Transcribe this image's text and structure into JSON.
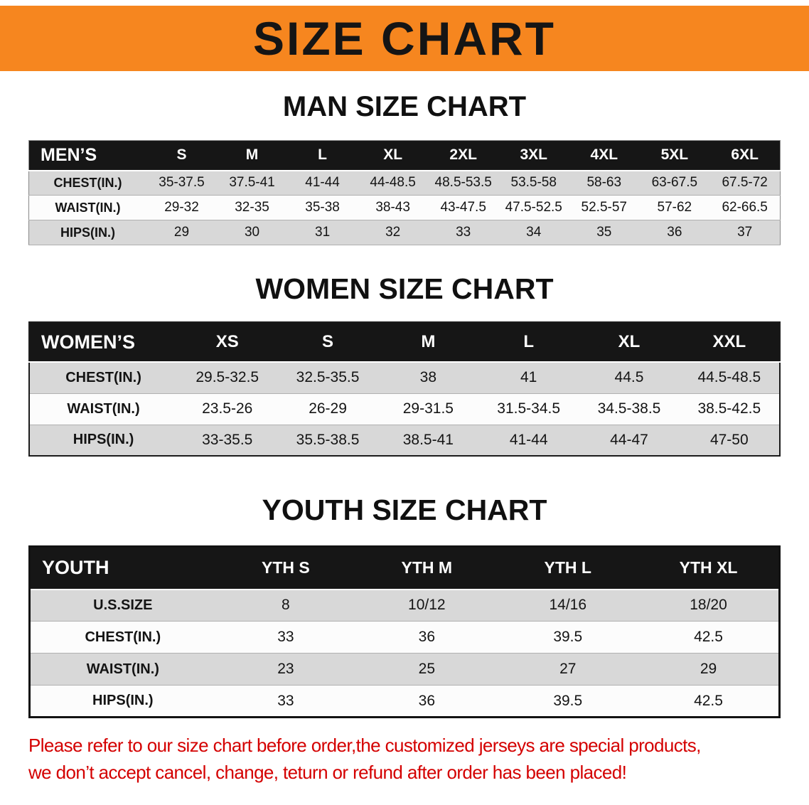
{
  "banner": {
    "title": "SIZE CHART"
  },
  "sections": [
    {
      "heading": "MAN SIZE CHART",
      "table": {
        "header": [
          "MEN’S",
          "S",
          "M",
          "L",
          "XL",
          "2XL",
          "3XL",
          "4XL",
          "5XL",
          "6XL"
        ],
        "rows": [
          [
            "CHEST(IN.)",
            "35-37.5",
            "37.5-41",
            "41-44",
            "44-48.5",
            "48.5-53.5",
            "53.5-58",
            "58-63",
            "63-67.5",
            "67.5-72"
          ],
          [
            "WAIST(IN.)",
            "29-32",
            "32-35",
            "35-38",
            "38-43",
            "43-47.5",
            "47.5-52.5",
            "52.5-57",
            "57-62",
            "62-66.5"
          ],
          [
            "HIPS(IN.)",
            "29",
            "30",
            "31",
            "32",
            "33",
            "34",
            "35",
            "36",
            "37"
          ]
        ]
      }
    },
    {
      "heading": "WOMEN SIZE CHART",
      "table": {
        "header": [
          "WOMEN’S",
          "XS",
          "S",
          "M",
          "L",
          "XL",
          "XXL"
        ],
        "rows": [
          [
            "CHEST(IN.)",
            "29.5-32.5",
            "32.5-35.5",
            "38",
            "41",
            "44.5",
            "44.5-48.5"
          ],
          [
            "WAIST(IN.)",
            "23.5-26",
            "26-29",
            "29-31.5",
            "31.5-34.5",
            "34.5-38.5",
            "38.5-42.5"
          ],
          [
            "HIPS(IN.)",
            "33-35.5",
            "35.5-38.5",
            "38.5-41",
            "41-44",
            "44-47",
            "47-50"
          ]
        ]
      }
    },
    {
      "heading": "YOUTH SIZE CHART",
      "table": {
        "header": [
          "YOUTH",
          "YTH S",
          "YTH M",
          "YTH L",
          "YTH XL"
        ],
        "rows": [
          [
            "U.S.SIZE",
            "8",
            "10/12",
            "14/16",
            "18/20"
          ],
          [
            "CHEST(IN.)",
            "33",
            "36",
            "39.5",
            "42.5"
          ],
          [
            "WAIST(IN.)",
            "23",
            "25",
            "27",
            "29"
          ],
          [
            "HIPS(IN.)",
            "33",
            "36",
            "39.5",
            "42.5"
          ]
        ]
      }
    }
  ],
  "disclaimer": {
    "line1": "Please refer to our size chart before order,the customized jerseys are special products,",
    "line2": "we don’t accept cancel, change, teturn or refund after order has been placed!"
  },
  "colors": {
    "banner_orange": "#f6861f",
    "header_black": "#161616",
    "row_gray": "#d8d8d8",
    "disclaimer_red": "#d40000"
  }
}
